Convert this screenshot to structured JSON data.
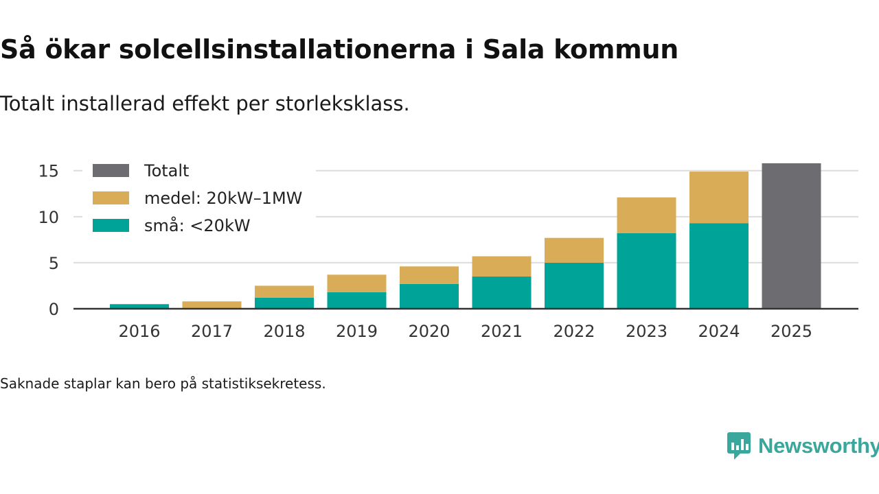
{
  "title": "Så ökar solcellsinstallationerna i Sala kommun",
  "subtitle": "Totalt installerad effekt per storleksklass.",
  "footnote": "Saknade staplar kan bero på statistiksekretess.",
  "brand": "Newsworthy",
  "colors": {
    "small": "#00a398",
    "medium": "#d9ac57",
    "total": "#6d6c71",
    "grid": "#dcdcdc",
    "axis": "#333333"
  },
  "chart_data": {
    "type": "bar",
    "stacked": true,
    "categories": [
      "2016",
      "2017",
      "2018",
      "2019",
      "2020",
      "2021",
      "2022",
      "2023",
      "2024",
      "2025"
    ],
    "series": [
      {
        "name": "små: <20kW",
        "key": "small",
        "values": [
          0.5,
          0,
          1.2,
          1.8,
          2.7,
          3.5,
          5.0,
          8.2,
          9.3,
          null
        ]
      },
      {
        "name": "medel: 20kW–1MW",
        "key": "medium",
        "values": [
          0,
          0.8,
          1.3,
          1.9,
          1.9,
          2.2,
          2.7,
          3.9,
          5.6,
          null
        ]
      },
      {
        "name": "Totalt",
        "key": "total",
        "values": [
          null,
          null,
          null,
          null,
          null,
          null,
          null,
          null,
          null,
          15.8
        ]
      }
    ],
    "legend": [
      {
        "name": "Totalt",
        "key": "total"
      },
      {
        "name": "medel: 20kW–1MW",
        "key": "medium"
      },
      {
        "name": "små: <20kW",
        "key": "small"
      }
    ],
    "legend_position": "top-left",
    "yticks": [
      0,
      5,
      10,
      15
    ],
    "ylim": [
      0,
      15.8
    ],
    "xlabel": "",
    "ylabel": "",
    "grid": true
  }
}
